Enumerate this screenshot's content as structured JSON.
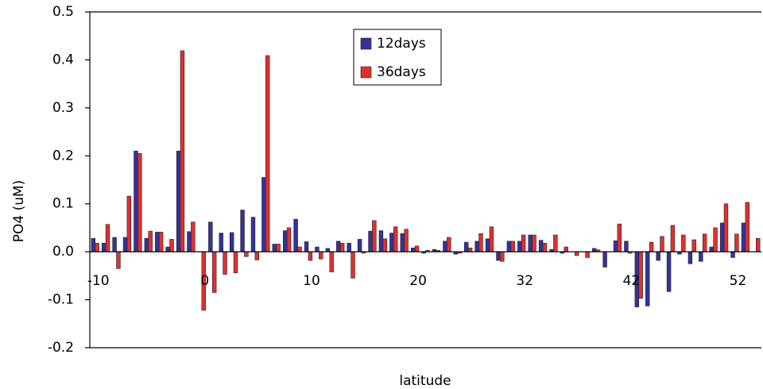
{
  "chart_data": {
    "type": "bar",
    "x_label": "latitude",
    "y_label": "PO4 (uM)",
    "categories": [
      "-10",
      null,
      null,
      null,
      null,
      null,
      null,
      null,
      null,
      null,
      "0",
      null,
      null,
      null,
      null,
      null,
      null,
      null,
      null,
      null,
      "10",
      null,
      null,
      null,
      null,
      null,
      null,
      null,
      null,
      null,
      "20",
      null,
      null,
      null,
      null,
      null,
      null,
      null,
      null,
      null,
      "32",
      null,
      null,
      null,
      null,
      null,
      null,
      null,
      null,
      null,
      "42",
      null,
      null,
      null,
      null,
      null,
      null,
      null,
      null,
      null,
      "52",
      null,
      null
    ],
    "series": [
      {
        "name": "12days",
        "color": "#333399",
        "values": [
          0.028,
          0.018,
          0.03,
          0.03,
          0.21,
          0.028,
          0.041,
          0.01,
          0.21,
          0.042,
          0.0,
          0.062,
          0.039,
          0.04,
          0.087,
          0.072,
          0.155,
          0.016,
          0.044,
          0.068,
          0.021,
          0.01,
          0.007,
          0.022,
          0.018,
          0.026,
          0.043,
          0.044,
          0.039,
          0.038,
          0.008,
          -0.003,
          0.005,
          0.022,
          -0.005,
          0.02,
          0.022,
          0.027,
          -0.018,
          0.022,
          0.022,
          0.035,
          0.024,
          0.005,
          -0.003,
          0.0,
          0.0,
          0.007,
          -0.032,
          0.023,
          0.022,
          -0.115,
          -0.113,
          -0.018,
          -0.083,
          -0.005,
          -0.025,
          -0.02,
          0.01,
          0.06,
          -0.012,
          0.06,
          0.0
        ]
      },
      {
        "name": "36days",
        "color": "#e03030",
        "values": [
          0.018,
          0.057,
          -0.035,
          0.116,
          0.205,
          0.043,
          0.041,
          0.026,
          0.419,
          0.062,
          -0.122,
          -0.085,
          -0.047,
          -0.044,
          -0.01,
          -0.017,
          0.409,
          0.016,
          0.05,
          0.01,
          -0.018,
          -0.015,
          -0.042,
          0.018,
          -0.055,
          -0.003,
          0.065,
          0.027,
          0.052,
          0.047,
          0.012,
          0.003,
          0.003,
          0.03,
          -0.003,
          0.008,
          0.038,
          0.052,
          -0.02,
          0.022,
          0.035,
          0.035,
          0.018,
          0.035,
          0.01,
          -0.008,
          -0.012,
          0.004,
          0.0,
          0.058,
          -0.003,
          -0.097,
          0.02,
          0.032,
          0.055,
          0.035,
          0.025,
          0.037,
          0.05,
          0.1,
          0.037,
          0.103,
          0.028
        ]
      }
    ],
    "ylim": [
      -0.2,
      0.5
    ],
    "yticks": [
      -0.2,
      -0.1,
      {
        "value": 0,
        "label": "0.0"
      },
      0.1,
      0.2,
      0.3,
      0.4,
      0.5
    ],
    "legend": "top-center"
  }
}
